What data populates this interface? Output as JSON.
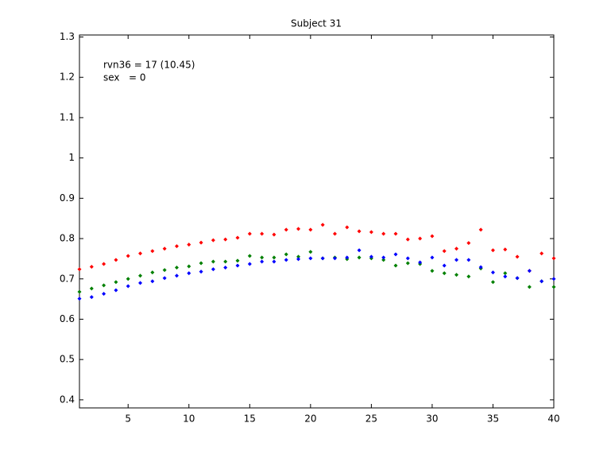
{
  "chart_data": {
    "type": "scatter",
    "title": "Subject 31",
    "annotations": [
      "rvn36 = 17 (10.45)",
      "sex   = 0"
    ],
    "x": [
      1,
      2,
      3,
      4,
      5,
      6,
      7,
      8,
      9,
      10,
      11,
      12,
      13,
      14,
      15,
      16,
      17,
      18,
      19,
      20,
      21,
      22,
      23,
      24,
      25,
      26,
      27,
      28,
      29,
      30,
      31,
      32,
      33,
      34,
      35,
      36,
      37,
      38,
      39,
      40
    ],
    "series": [
      {
        "color": "#ff0000",
        "values": [
          0.724,
          0.73,
          0.737,
          0.747,
          0.757,
          0.763,
          0.769,
          0.775,
          0.781,
          0.785,
          0.79,
          0.796,
          0.798,
          0.802,
          0.812,
          0.812,
          0.81,
          0.822,
          0.824,
          0.822,
          0.834,
          0.812,
          0.828,
          0.818,
          0.816,
          0.812,
          0.812,
          0.798,
          0.8,
          0.806,
          0.769,
          0.775,
          0.789,
          0.822,
          0.771,
          0.773,
          0.755,
          0.72,
          0.763,
          0.751
        ]
      },
      {
        "color": "#008000",
        "values": [
          0.668,
          0.676,
          0.684,
          0.692,
          0.7,
          0.708,
          0.716,
          0.722,
          0.728,
          0.731,
          0.739,
          0.743,
          0.743,
          0.745,
          0.757,
          0.753,
          0.753,
          0.761,
          0.755,
          0.767,
          0.751,
          0.753,
          0.749,
          0.753,
          0.751,
          0.747,
          0.733,
          0.739,
          0.737,
          0.72,
          0.714,
          0.71,
          0.706,
          0.726,
          0.692,
          0.714,
          0.702,
          0.68,
          0.694,
          0.68
        ]
      },
      {
        "color": "#0000ff",
        "values": [
          0.651,
          0.655,
          0.663,
          0.672,
          0.682,
          0.69,
          0.694,
          0.702,
          0.708,
          0.714,
          0.718,
          0.724,
          0.728,
          0.733,
          0.737,
          0.743,
          0.743,
          0.747,
          0.749,
          0.751,
          0.751,
          0.751,
          0.753,
          0.771,
          0.755,
          0.753,
          0.761,
          0.751,
          0.741,
          0.753,
          0.733,
          0.747,
          0.747,
          0.729,
          0.716,
          0.706,
          0.702,
          0.72,
          0.694,
          0.7
        ]
      }
    ],
    "xlim": [
      1,
      40
    ],
    "xticks": [
      5,
      10,
      15,
      20,
      25,
      30,
      35,
      40
    ],
    "ylim": [
      0.38,
      1.305
    ],
    "yticks": [
      {
        "value": 0.4,
        "label": "0.4"
      },
      {
        "value": 0.5,
        "label": "0.5"
      },
      {
        "value": 0.6,
        "label": "0.6"
      },
      {
        "value": 0.7,
        "label": "0.7"
      },
      {
        "value": 0.8,
        "label": "0.8"
      },
      {
        "value": 0.9,
        "label": "0.9"
      },
      1,
      {
        "value": 1.1,
        "label": "1.1"
      },
      {
        "value": 1.2,
        "label": "1.2"
      },
      {
        "value": 1.3,
        "label": "1.3"
      }
    ],
    "grid": false
  }
}
